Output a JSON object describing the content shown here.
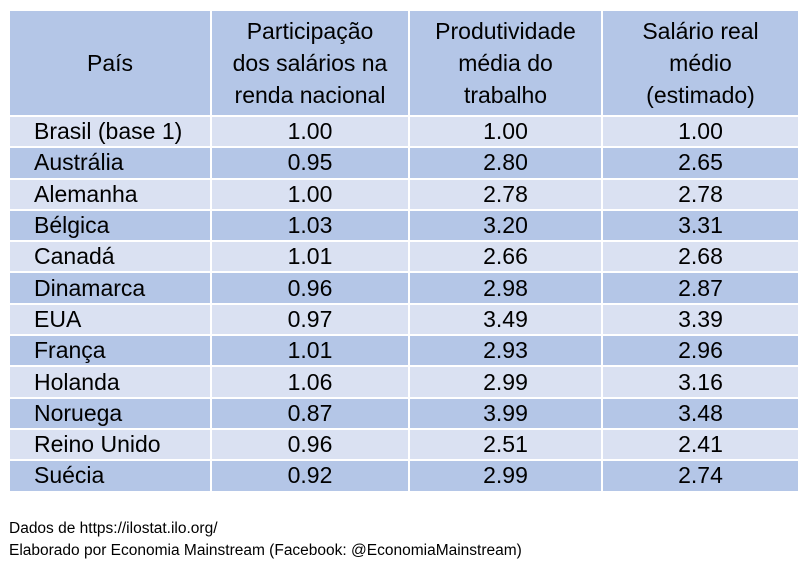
{
  "table": {
    "headers": [
      {
        "lines": [
          "País"
        ]
      },
      {
        "lines": [
          "Participação",
          "dos salários na",
          "renda nacional"
        ]
      },
      {
        "lines": [
          "Produtividade",
          "média do",
          "trabalho"
        ]
      },
      {
        "lines": [
          "Salário real",
          "médio",
          "(estimado)"
        ]
      }
    ],
    "rows": [
      {
        "country": "Brasil (base 1)",
        "wage_share": "1.00",
        "productivity": "1.00",
        "real_wage": "1.00"
      },
      {
        "country": "Austrália",
        "wage_share": "0.95",
        "productivity": "2.80",
        "real_wage": "2.65"
      },
      {
        "country": "Alemanha",
        "wage_share": "1.00",
        "productivity": "2.78",
        "real_wage": "2.78"
      },
      {
        "country": "Bélgica",
        "wage_share": "1.03",
        "productivity": "3.20",
        "real_wage": "3.31"
      },
      {
        "country": "Canadá",
        "wage_share": "1.01",
        "productivity": "2.66",
        "real_wage": "2.68"
      },
      {
        "country": "Dinamarca",
        "wage_share": "0.96",
        "productivity": "2.98",
        "real_wage": "2.87"
      },
      {
        "country": "EUA",
        "wage_share": "0.97",
        "productivity": "3.49",
        "real_wage": "3.39"
      },
      {
        "country": "França",
        "wage_share": "1.01",
        "productivity": "2.93",
        "real_wage": "2.96"
      },
      {
        "country": "Holanda",
        "wage_share": "1.06",
        "productivity": "2.99",
        "real_wage": "3.16"
      },
      {
        "country": "Noruega",
        "wage_share": "0.87",
        "productivity": "3.99",
        "real_wage": "3.48"
      },
      {
        "country": "Reino Unido",
        "wage_share": "0.96",
        "productivity": "2.51",
        "real_wage": "2.41"
      },
      {
        "country": "Suécia",
        "wage_share": "0.92",
        "productivity": "2.99",
        "real_wage": "2.74"
      }
    ]
  },
  "footer": {
    "source": "Dados de https://ilostat.ilo.org/",
    "credit": "Elaborado por Economia Mainstream (Facebook: @EconomiaMainstream)"
  },
  "colors": {
    "header_bg": "#b4c6e7",
    "row_light": "#dae1f2",
    "row_dark": "#b4c6e7",
    "grid": "#ffffff"
  }
}
